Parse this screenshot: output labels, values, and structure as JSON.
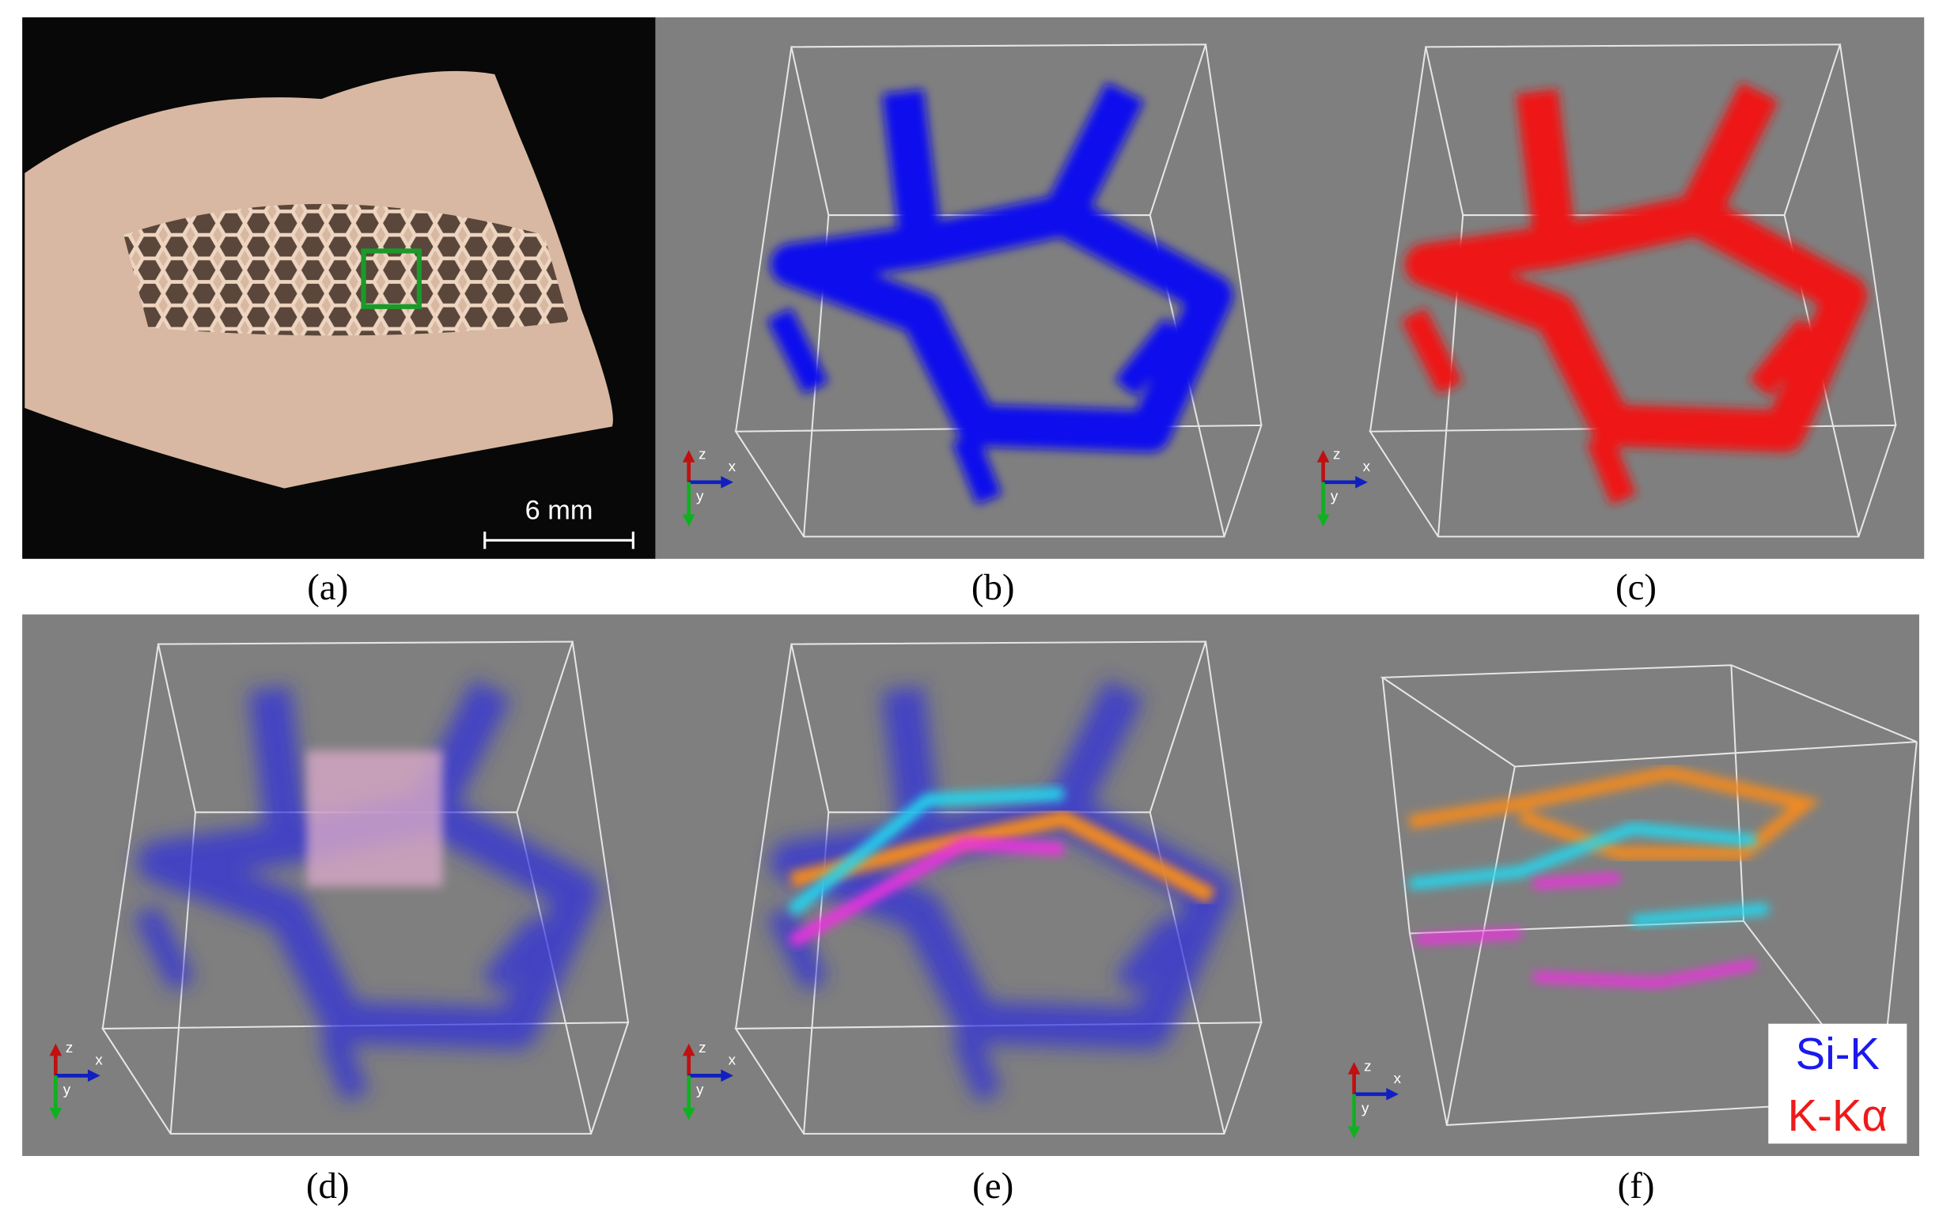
{
  "panels": [
    {
      "label": "(a)",
      "scale_bar": "6 mm"
    },
    {
      "label": "(b)",
      "axes": [
        "z",
        "x",
        "y"
      ]
    },
    {
      "label": "(c)",
      "axes": [
        "z",
        "x",
        "y"
      ]
    },
    {
      "label": "(d)",
      "axes": [
        "z",
        "x",
        "y"
      ]
    },
    {
      "label": "(e)",
      "axes": [
        "z",
        "x",
        "y"
      ]
    },
    {
      "label": "(f)",
      "axes": [
        "z",
        "x",
        "y"
      ],
      "legend": [
        "Si-K",
        "K-Kα"
      ]
    }
  ]
}
